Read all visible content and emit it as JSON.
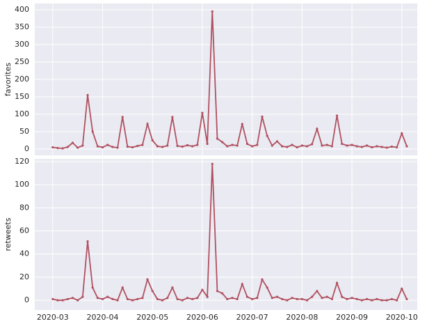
{
  "chart_data": [
    {
      "type": "line",
      "ylabel": "favorites",
      "color": "#b0505f",
      "grid": true,
      "x": [
        3.0,
        3.1,
        3.2,
        3.3,
        3.4,
        3.5,
        3.6,
        3.7,
        3.8,
        3.9,
        4.0,
        4.1,
        4.2,
        4.3,
        4.4,
        4.5,
        4.6,
        4.7,
        4.8,
        4.9,
        5.0,
        5.1,
        5.2,
        5.3,
        5.4,
        5.5,
        5.6,
        5.7,
        5.8,
        5.9,
        6.0,
        6.1,
        6.2,
        6.3,
        6.4,
        6.5,
        6.6,
        6.7,
        6.8,
        6.9,
        7.0,
        7.1,
        7.2,
        7.3,
        7.4,
        7.5,
        7.6,
        7.7,
        7.8,
        7.9,
        8.0,
        8.1,
        8.2,
        8.3,
        8.4,
        8.5,
        8.6,
        8.7,
        8.8,
        8.9,
        9.0,
        9.1,
        9.2,
        9.3,
        9.4,
        9.5,
        9.6,
        9.7,
        9.8,
        9.9,
        10.0,
        10.1
      ],
      "values": [
        5,
        3,
        2,
        6,
        18,
        4,
        10,
        155,
        50,
        8,
        5,
        12,
        6,
        4,
        92,
        7,
        5,
        9,
        12,
        72,
        25,
        8,
        6,
        10,
        92,
        9,
        7,
        11,
        8,
        12,
        104,
        15,
        395,
        30,
        20,
        8,
        12,
        10,
        72,
        15,
        8,
        12,
        93,
        38,
        10,
        22,
        8,
        6,
        12,
        5,
        10,
        8,
        14,
        58,
        10,
        12,
        8,
        96,
        15,
        10,
        12,
        8,
        6,
        10,
        5,
        8,
        6,
        4,
        7,
        5,
        45,
        8
      ],
      "ylim": [
        -18,
        418
      ],
      "yticks": [
        0,
        50,
        100,
        150,
        200,
        250,
        300,
        350,
        400
      ]
    },
    {
      "type": "line",
      "ylabel": "retweets",
      "color": "#b0505f",
      "grid": true,
      "x": [
        3.0,
        3.1,
        3.2,
        3.3,
        3.4,
        3.5,
        3.6,
        3.7,
        3.8,
        3.9,
        4.0,
        4.1,
        4.2,
        4.3,
        4.4,
        4.5,
        4.6,
        4.7,
        4.8,
        4.9,
        5.0,
        5.1,
        5.2,
        5.3,
        5.4,
        5.5,
        5.6,
        5.7,
        5.8,
        5.9,
        6.0,
        6.1,
        6.2,
        6.3,
        6.4,
        6.5,
        6.6,
        6.7,
        6.8,
        6.9,
        7.0,
        7.1,
        7.2,
        7.3,
        7.4,
        7.5,
        7.6,
        7.7,
        7.8,
        7.9,
        8.0,
        8.1,
        8.2,
        8.3,
        8.4,
        8.5,
        8.6,
        8.7,
        8.8,
        8.9,
        9.0,
        9.1,
        9.2,
        9.3,
        9.4,
        9.5,
        9.6,
        9.7,
        9.8,
        9.9,
        10.0,
        10.1
      ],
      "values": [
        1,
        0,
        0,
        1,
        2,
        0,
        3,
        51,
        11,
        2,
        1,
        3,
        1,
        0,
        11,
        1,
        0,
        1,
        2,
        18,
        8,
        1,
        0,
        2,
        11,
        1,
        0,
        2,
        1,
        2,
        9,
        3,
        118,
        8,
        6,
        1,
        2,
        1,
        14,
        3,
        1,
        2,
        18,
        11,
        2,
        3,
        1,
        0,
        2,
        1,
        1,
        0,
        3,
        8,
        2,
        3,
        1,
        15,
        3,
        1,
        2,
        1,
        0,
        1,
        0,
        1,
        0,
        0,
        1,
        0,
        10,
        1
      ],
      "ylim": [
        -8.4,
        122.4
      ],
      "yticks": [
        0,
        20,
        40,
        60,
        80,
        100,
        120
      ],
      "xlim": [
        2.64,
        10.31
      ],
      "xticks": [
        {
          "value": 3,
          "label": "2020-03"
        },
        {
          "value": 4,
          "label": "2020-04"
        },
        {
          "value": 5,
          "label": "2020-05"
        },
        {
          "value": 6,
          "label": "2020-06"
        },
        {
          "value": 7,
          "label": "2020-07"
        },
        {
          "value": 8,
          "label": "2020-08"
        },
        {
          "value": 9,
          "label": "2020-09"
        },
        {
          "value": 10,
          "label": "2020-10"
        }
      ]
    }
  ]
}
